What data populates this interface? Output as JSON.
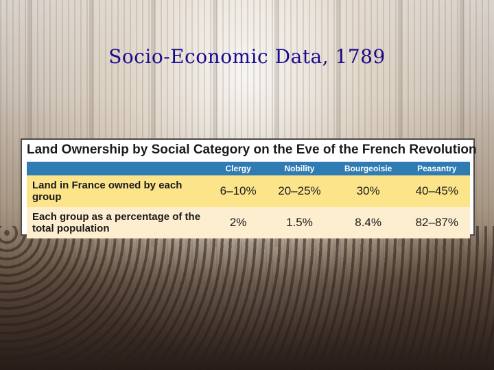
{
  "slide": {
    "title": "Socio-Economic Data, 1789"
  },
  "table": {
    "title": "Land Ownership by Social Category on the Eve of the French Revolution",
    "header_color": "#2f7bb3",
    "row_colors": [
      "#fbe48a",
      "#fdeecf"
    ],
    "columns": [
      "Clergy",
      "Nobility",
      "Bourgeoisie",
      "Peasantry"
    ],
    "rows": [
      {
        "label": "Land in France owned by each group",
        "values": [
          "6–10%",
          "20–25%",
          "30%",
          "40–45%"
        ]
      },
      {
        "label": "Each group as a percentage of the total population",
        "values": [
          "2%",
          "1.5%",
          "8.4%",
          "82–87%"
        ]
      }
    ]
  }
}
